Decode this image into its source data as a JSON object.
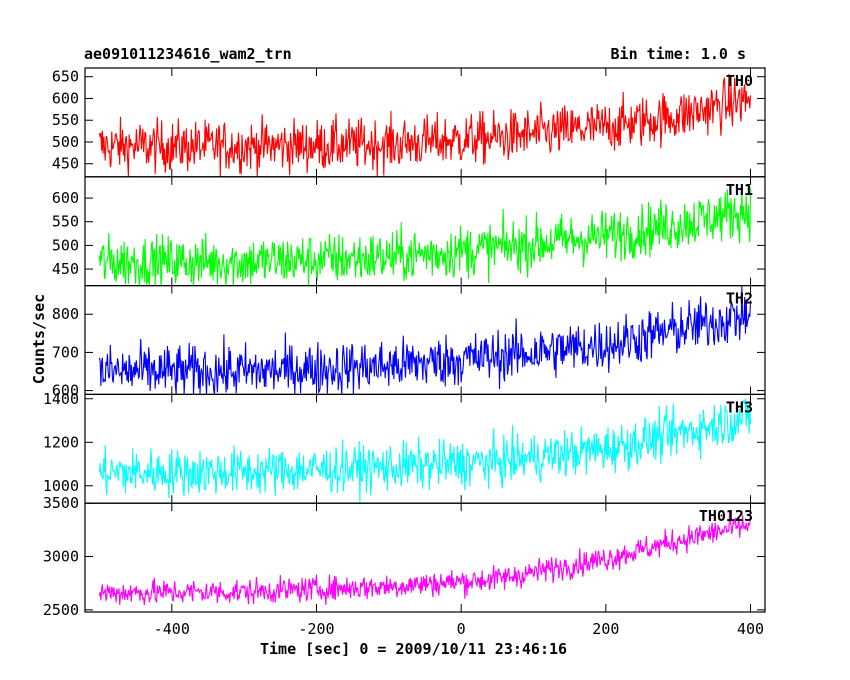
{
  "header": {
    "title_left": "ae091011234616_wam2_trn",
    "title_right": "Bin time: 1.0 s"
  },
  "axes": {
    "xlabel": "Time [sec] 0 = 2009/10/11 23:46:16",
    "ylabel": "Counts/sec"
  },
  "chart_data": {
    "type": "line",
    "xlim": [
      -520,
      420
    ],
    "x_ticks": [
      -400,
      -200,
      0,
      200,
      400
    ],
    "x_range": [
      -500,
      400
    ],
    "bin_time_s": 1.0,
    "panels": [
      {
        "name": "TH0",
        "color": "#ff0000",
        "ylim": [
          420,
          670
        ],
        "y_ticks": [
          450,
          500,
          550,
          600,
          650
        ],
        "trend": {
          "x": [
            -500,
            -300,
            -100,
            50,
            200,
            300,
            400
          ],
          "y": [
            490,
            490,
            495,
            510,
            535,
            560,
            600
          ]
        },
        "noise": 30
      },
      {
        "name": "TH1",
        "color": "#00ff00",
        "ylim": [
          415,
          645
        ],
        "y_ticks": [
          450,
          500,
          550,
          600
        ],
        "trend": {
          "x": [
            -500,
            -300,
            -100,
            50,
            200,
            300,
            400
          ],
          "y": [
            465,
            465,
            475,
            495,
            520,
            545,
            575
          ]
        },
        "noise": 28
      },
      {
        "name": "TH2",
        "color": "#0000ff",
        "ylim": [
          590,
          875
        ],
        "y_ticks": [
          600,
          700,
          800
        ],
        "trend": {
          "x": [
            -500,
            -300,
            -100,
            50,
            200,
            300,
            400
          ],
          "y": [
            650,
            650,
            665,
            690,
            720,
            760,
            800
          ]
        },
        "noise": 35
      },
      {
        "name": "TH3",
        "color": "#00ffff",
        "ylim": [
          920,
          1420
        ],
        "y_ticks": [
          1000,
          1200,
          1400
        ],
        "trend": {
          "x": [
            -500,
            -300,
            -100,
            50,
            200,
            300,
            400
          ],
          "y": [
            1060,
            1065,
            1085,
            1110,
            1170,
            1240,
            1320
          ]
        },
        "noise": 55
      },
      {
        "name": "TH0123",
        "color": "#ff00ff",
        "ylim": [
          2480,
          3500
        ],
        "y_ticks": [
          2500,
          3000,
          3500
        ],
        "trend": {
          "x": [
            -500,
            -300,
            -100,
            50,
            200,
            300,
            400
          ],
          "y": [
            2660,
            2670,
            2720,
            2790,
            2980,
            3150,
            3300
          ]
        },
        "noise": 60
      }
    ]
  }
}
